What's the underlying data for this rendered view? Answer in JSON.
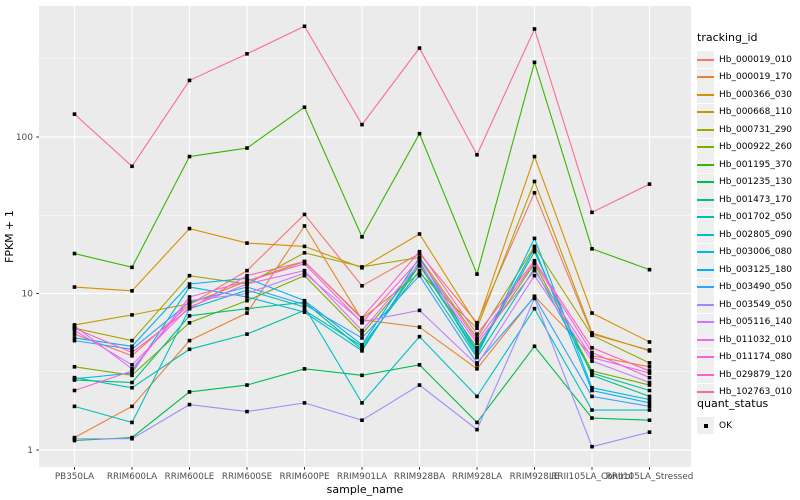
{
  "legend": {
    "tracking": {
      "title": "tracking_id"
    },
    "quant": {
      "title": "quant_status",
      "items": [
        {
          "label": "OK",
          "key": "black-square-point"
        }
      ]
    }
  },
  "axes": {
    "y_title": "FPKM + 1",
    "x_title": "sample_name"
  },
  "chart_data": {
    "type": "line",
    "title": "",
    "xlabel": "sample_name",
    "ylabel": "FPKM + 1",
    "y_scale": "log10",
    "ylim": [
      1,
      600
    ],
    "y_ticks": [
      {
        "v": 1,
        "label": "1"
      },
      {
        "v": 10,
        "label": "10"
      },
      {
        "v": 100,
        "label": "100"
      }
    ],
    "y_minor_ticks": [
      3.1623,
      31.623,
      316.23
    ],
    "grid": true,
    "panel_bg": "#EBEBEB",
    "grid_color": "#FFFFFF",
    "tick_text_color": "#4D4D4D",
    "point_style": "small-black-filled-square",
    "legend_position": "right",
    "x_categories": [
      "PB350LA",
      "RRIM600LA",
      "RRIM600LE",
      "RRIM600SE",
      "RRIM600PE",
      "RRIM901LA",
      "RRIM928BA",
      "RRIM928LA",
      "RRIM928LE",
      "RRII105LA_Control",
      "RRII105LA_Stressed"
    ],
    "series": [
      {
        "name": "Hb_000019_010",
        "color": "#F8766D",
        "values": [
          5.5,
          4.0,
          8.5,
          14,
          32,
          11.2,
          18,
          6.5,
          44,
          5.5,
          4.35
        ]
      },
      {
        "name": "Hb_000019_170",
        "color": "#EA8331",
        "values": [
          1.2,
          1.9,
          5.0,
          7.5,
          27,
          6.8,
          6.1,
          3.3,
          9.6,
          4.0,
          3.4
        ]
      },
      {
        "name": "Hb_000366_030",
        "color": "#D89000",
        "values": [
          11,
          10.4,
          26,
          21,
          20,
          14.6,
          24,
          6.3,
          75,
          7.5,
          4.9
        ]
      },
      {
        "name": "Hb_000668_110",
        "color": "#C09B00",
        "values": [
          6.3,
          7.3,
          8.6,
          12,
          16,
          6.9,
          13.5,
          6.0,
          52,
          5.6,
          4.3
        ]
      },
      {
        "name": "Hb_000731_290",
        "color": "#A3A500",
        "values": [
          6.0,
          5.0,
          13,
          11.5,
          18.2,
          14.8,
          17,
          5.2,
          20,
          5.4,
          3.6
        ]
      },
      {
        "name": "Hb_000922_260",
        "color": "#7CAE00",
        "values": [
          3.4,
          3.0,
          6.5,
          9.0,
          13,
          5.5,
          15,
          4.5,
          15.5,
          3.2,
          2.6
        ]
      },
      {
        "name": "Hb_001195_370",
        "color": "#39B600",
        "values": [
          18,
          14.7,
          75,
          85,
          155,
          23,
          105,
          13.3,
          300,
          19.3,
          14.2
        ]
      },
      {
        "name": "Hb_001235_130",
        "color": "#00BB4E",
        "values": [
          1.15,
          1.2,
          2.35,
          2.6,
          3.3,
          3.0,
          3.5,
          1.5,
          4.6,
          1.6,
          1.55
        ]
      },
      {
        "name": "Hb_001473_170",
        "color": "#00BF7D",
        "values": [
          2.8,
          2.7,
          7.2,
          8.0,
          8.8,
          4.4,
          15.2,
          4.2,
          18.5,
          3.0,
          2.2
        ]
      },
      {
        "name": "Hb_001702_050",
        "color": "#00C1A3",
        "values": [
          2.9,
          2.5,
          4.4,
          5.5,
          7.8,
          4.6,
          14,
          3.9,
          14.5,
          3.1,
          2.4
        ]
      },
      {
        "name": "Hb_002805_090",
        "color": "#00BFC4",
        "values": [
          1.9,
          1.5,
          8.0,
          10.5,
          8.2,
          2.0,
          5.3,
          2.2,
          8.0,
          1.8,
          1.8
        ]
      },
      {
        "name": "Hb_003006_080",
        "color": "#00BAE0",
        "values": [
          2.85,
          3.1,
          11,
          9.5,
          7.6,
          4.3,
          16,
          4.0,
          22.5,
          2.5,
          2.1
        ]
      },
      {
        "name": "Hb_003125_180",
        "color": "#00B0F6",
        "values": [
          5.2,
          4.6,
          11.5,
          12.5,
          9.0,
          4.7,
          17,
          4.3,
          19.5,
          2.4,
          2.0
        ]
      },
      {
        "name": "Hb_003490_050",
        "color": "#35A2FF",
        "values": [
          5.0,
          4.4,
          8.8,
          11,
          8.5,
          5.2,
          13,
          3.6,
          9.5,
          2.2,
          1.9
        ]
      },
      {
        "name": "Hb_003549_050",
        "color": "#9590FF",
        "values": [
          1.18,
          1.18,
          1.95,
          1.76,
          2.0,
          1.55,
          2.6,
          1.35,
          9.3,
          1.05,
          1.3
        ]
      },
      {
        "name": "Hb_005116_140",
        "color": "#C77CFF",
        "values": [
          6.2,
          3.3,
          9.0,
          10,
          13.5,
          6.6,
          7.8,
          3.5,
          13,
          3.7,
          2.7
        ]
      },
      {
        "name": "Hb_011032_010",
        "color": "#E76BF3",
        "values": [
          5.8,
          3.5,
          8.2,
          11.5,
          14,
          5.8,
          15.5,
          4.8,
          14,
          3.9,
          3.1
        ]
      },
      {
        "name": "Hb_011174_080",
        "color": "#FA62DB",
        "values": [
          2.4,
          3.2,
          9.5,
          12,
          15.5,
          6.5,
          16.5,
          5.0,
          15.8,
          4.2,
          2.9
        ]
      },
      {
        "name": "Hb_029879_120",
        "color": "#FF62BC",
        "values": [
          6.0,
          4.2,
          8.0,
          13,
          16,
          7.0,
          18.5,
          5.5,
          16.2,
          4.5,
          3.2
        ]
      },
      {
        "name": "Hb_102763_010",
        "color": "#FF6A98",
        "values": [
          140,
          65,
          230,
          340,
          510,
          120,
          370,
          77,
          490,
          33,
          50
        ]
      }
    ]
  }
}
